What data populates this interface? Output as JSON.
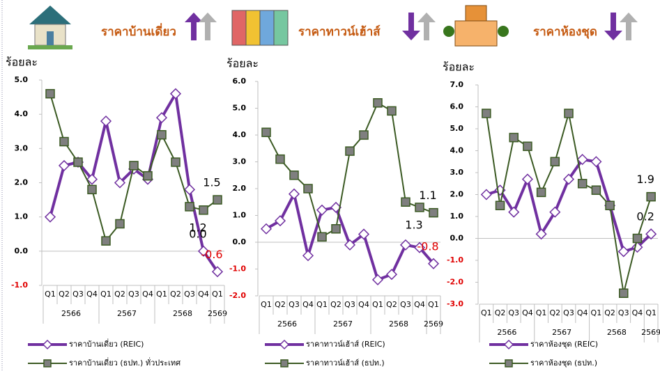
{
  "chart_data": [
    {
      "type": "line",
      "title": "ราคาบ้านเดี่ยว",
      "y_label": "ร้อยละ",
      "categories": [
        "Q1",
        "Q2",
        "Q3",
        "Q4",
        "Q1",
        "Q2",
        "Q3",
        "Q4",
        "Q1",
        "Q2",
        "Q3",
        "Q4",
        "Q1"
      ],
      "category_groups": [
        "2566",
        "2566",
        "2566",
        "2566",
        "2567",
        "2567",
        "2567",
        "2567",
        "2568",
        "2568",
        "2568",
        "2568",
        "2569"
      ],
      "ylim": [
        -1,
        5
      ],
      "yticks": [
        {
          "value": -1,
          "label": "-1.0"
        },
        {
          "value": 0,
          "label": "0.0"
        },
        {
          "value": 1,
          "label": "1.0"
        },
        {
          "value": 2,
          "label": "2.0"
        },
        {
          "value": 3,
          "label": "3.0"
        },
        {
          "value": 4,
          "label": "4.0"
        },
        {
          "value": 5,
          "label": "5.0"
        }
      ],
      "negative_tick_color": "#e00000",
      "series": [
        {
          "name": "ราคาบ้านเดี่ยว (REIC)",
          "color": "#7030a0",
          "marker": "diamond",
          "values": [
            1.0,
            2.5,
            2.6,
            2.1,
            3.8,
            2.0,
            2.4,
            2.1,
            3.9,
            4.6,
            1.8,
            0.0,
            -0.6
          ],
          "value_labels": [
            null,
            null,
            null,
            null,
            null,
            null,
            null,
            null,
            null,
            null,
            null,
            "0.0",
            "-0.6"
          ],
          "value_label_colors": [
            null,
            null,
            null,
            null,
            null,
            null,
            null,
            null,
            null,
            null,
            null,
            "#000000",
            "#e00000"
          ]
        },
        {
          "name": "ราคาบ้านเดี่ยว (ธปท.) ทั่วประเทศ",
          "color": "#3b5a23",
          "marker": "square",
          "values": [
            4.6,
            3.2,
            2.6,
            1.8,
            0.3,
            0.8,
            2.5,
            2.2,
            3.4,
            2.6,
            1.3,
            1.2,
            1.5
          ],
          "value_labels": [
            null,
            null,
            null,
            null,
            null,
            null,
            null,
            null,
            null,
            null,
            null,
            "1.2",
            "1.5"
          ],
          "value_label_colors": [
            null,
            null,
            null,
            null,
            null,
            null,
            null,
            null,
            null,
            null,
            null,
            "#000000",
            "#000000"
          ]
        }
      ]
    },
    {
      "type": "line",
      "title": "ราคาทาวน์เฮ้าส์",
      "y_label": "ร้อยละ",
      "categories": [
        "Q1",
        "Q2",
        "Q3",
        "Q4",
        "Q1",
        "Q2",
        "Q3",
        "Q4",
        "Q1",
        "Q2",
        "Q3",
        "Q4",
        "Q1"
      ],
      "category_groups": [
        "2566",
        "2566",
        "2566",
        "2566",
        "2567",
        "2567",
        "2567",
        "2567",
        "2568",
        "2568",
        "2568",
        "2568",
        "2569"
      ],
      "ylim": [
        -2,
        6
      ],
      "yticks": [
        {
          "value": -2,
          "label": "-2.0"
        },
        {
          "value": -1,
          "label": "-1.0"
        },
        {
          "value": 0,
          "label": "0.0"
        },
        {
          "value": 1,
          "label": "1.0"
        },
        {
          "value": 2,
          "label": "2.0"
        },
        {
          "value": 3,
          "label": "3.0"
        },
        {
          "value": 4,
          "label": "4.0"
        },
        {
          "value": 5,
          "label": "5.0"
        },
        {
          "value": 6,
          "label": "6.0"
        }
      ],
      "negative_tick_color": "#e00000",
      "series": [
        {
          "name": "ราคาทาวน์เฮ้าส์ (REIC)",
          "color": "#7030a0",
          "marker": "diamond",
          "values": [
            0.5,
            0.8,
            1.8,
            -0.5,
            1.2,
            1.3,
            -0.1,
            0.3,
            -1.4,
            -1.2,
            -0.1,
            -0.2,
            -0.8
          ],
          "value_labels": [
            null,
            null,
            null,
            null,
            null,
            null,
            null,
            null,
            null,
            null,
            null,
            null,
            "-0.8"
          ],
          "value_label_colors": [
            null,
            null,
            null,
            null,
            null,
            null,
            null,
            null,
            null,
            null,
            null,
            null,
            "#e00000"
          ]
        },
        {
          "name": "ราคาทาวน์เฮ้าส์ (ธปท.)",
          "color": "#3b5a23",
          "marker": "square",
          "values": [
            4.1,
            3.1,
            2.5,
            2.0,
            0.2,
            0.5,
            3.4,
            4.0,
            5.2,
            4.9,
            1.5,
            1.3,
            1.1
          ],
          "value_labels": [
            null,
            null,
            null,
            null,
            null,
            null,
            null,
            null,
            null,
            null,
            null,
            "1.3",
            "1.1"
          ],
          "value_label_colors": [
            null,
            null,
            null,
            null,
            null,
            null,
            null,
            null,
            null,
            null,
            null,
            "#000000",
            "#000000"
          ]
        }
      ]
    },
    {
      "type": "line",
      "title": "ราคาห้องชุด",
      "y_label": "ร้อยละ",
      "categories": [
        "Q1",
        "Q2",
        "Q3",
        "Q4",
        "Q1",
        "Q2",
        "Q3",
        "Q4",
        "Q1",
        "Q2",
        "Q3",
        "Q4",
        "Q1"
      ],
      "category_groups": [
        "2566",
        "2566",
        "2566",
        "2566",
        "2567",
        "2567",
        "2567",
        "2567",
        "2568",
        "2568",
        "2568",
        "2568",
        "2569"
      ],
      "ylim": [
        -3,
        7
      ],
      "yticks": [
        {
          "value": -3,
          "label": "-3.0"
        },
        {
          "value": -2,
          "label": "-2.0"
        },
        {
          "value": -1,
          "label": "-1.0"
        },
        {
          "value": 0,
          "label": "0.0"
        },
        {
          "value": 1,
          "label": "1.0"
        },
        {
          "value": 2,
          "label": "2.0"
        },
        {
          "value": 3,
          "label": "3.0"
        },
        {
          "value": 4,
          "label": "4.0"
        },
        {
          "value": 5,
          "label": "5.0"
        },
        {
          "value": 6,
          "label": "6.0"
        },
        {
          "value": 7,
          "label": "7.0"
        }
      ],
      "negative_tick_color": "#e00000",
      "series": [
        {
          "name": "ราคาห้องชุด (REIC)",
          "color": "#7030a0",
          "marker": "diamond",
          "values": [
            2.0,
            2.2,
            1.2,
            2.7,
            0.2,
            1.2,
            2.7,
            3.6,
            3.5,
            1.5,
            -0.6,
            -0.4,
            0.2
          ],
          "value_labels": [
            null,
            null,
            null,
            null,
            null,
            null,
            null,
            null,
            null,
            null,
            null,
            null,
            "0.2"
          ],
          "value_label_colors": [
            null,
            null,
            null,
            null,
            null,
            null,
            null,
            null,
            null,
            null,
            null,
            null,
            "#000000"
          ]
        },
        {
          "name": "ราคาห้องชุด (ธปท.)",
          "color": "#3b5a23",
          "marker": "square",
          "values": [
            5.7,
            1.5,
            4.6,
            4.2,
            2.1,
            3.5,
            5.7,
            2.5,
            2.2,
            1.5,
            -2.5,
            0.0,
            1.9
          ],
          "value_labels": [
            null,
            null,
            null,
            null,
            null,
            null,
            null,
            null,
            null,
            null,
            null,
            null,
            "1.9"
          ],
          "value_label_colors": [
            null,
            null,
            null,
            null,
            null,
            null,
            null,
            null,
            null,
            null,
            null,
            null,
            "#000000"
          ]
        }
      ]
    }
  ]
}
